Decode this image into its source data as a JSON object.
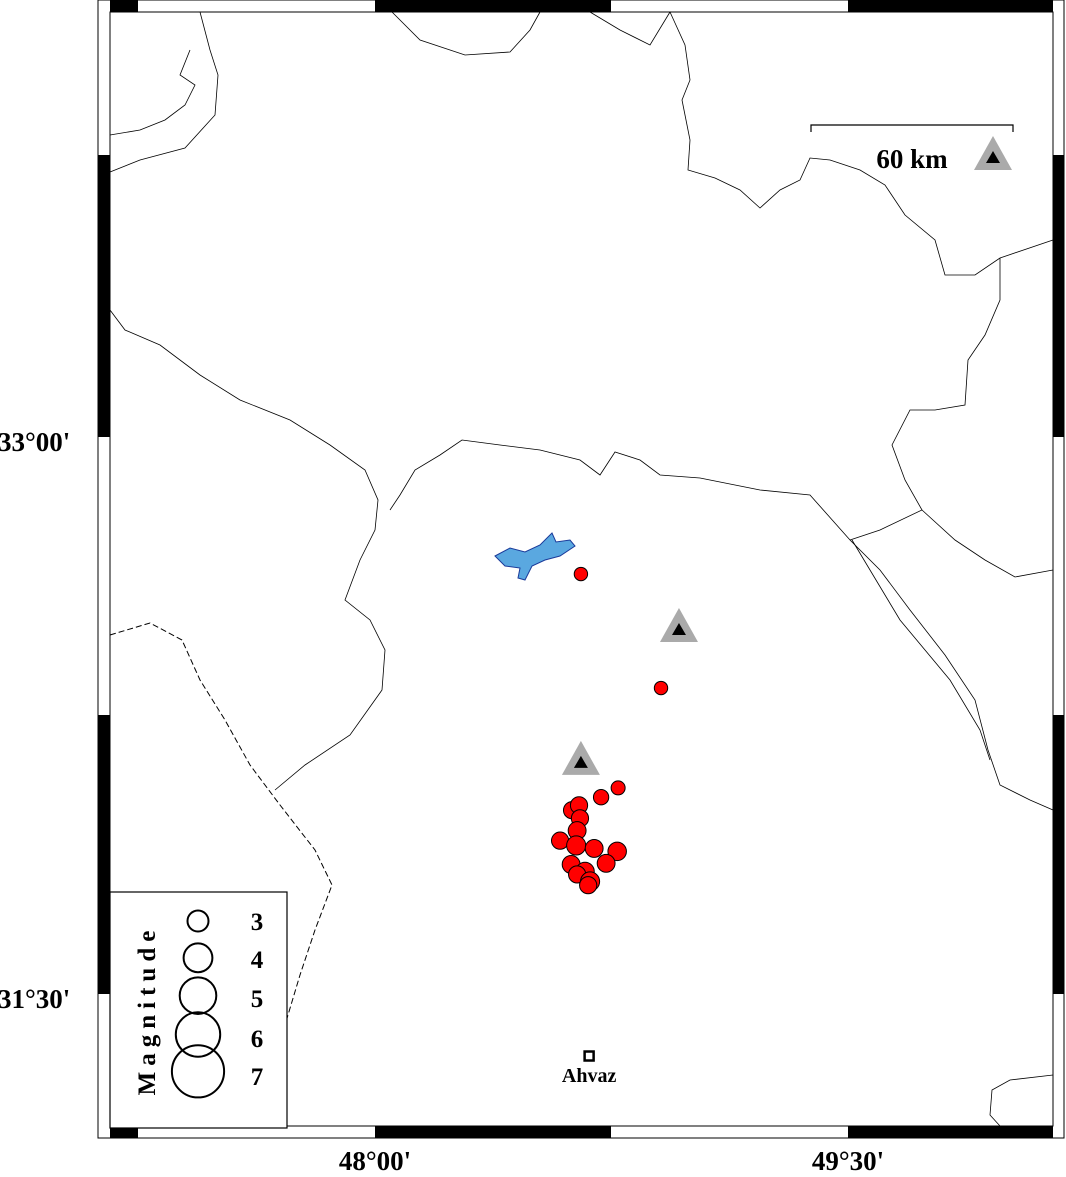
{
  "chart_data": {
    "type": "map",
    "lon_range": [
      47.2,
      50.2
    ],
    "lat_range": [
      30.96,
      33.46
    ],
    "x_ticks": [
      {
        "value": 48.0,
        "label": "48°00'"
      },
      {
        "value": 49.5,
        "label": "49°30'"
      }
    ],
    "y_ticks": [
      {
        "value": 33.0,
        "label": "33°00'"
      },
      {
        "value": 31.5,
        "label": "31°30'"
      }
    ],
    "scale_bar": {
      "label": "60 km"
    },
    "colors": {
      "event": "#ff0000",
      "lake": "#5aa8e0",
      "station": "#000000",
      "station_halo": "#aaaaaa",
      "border": "#000000"
    },
    "events": [
      {
        "lon": 48.653,
        "lat": 32.631,
        "mag": 2.4
      },
      {
        "lon": 48.907,
        "lat": 32.324,
        "mag": 2.4
      },
      {
        "lon": 48.771,
        "lat": 32.055,
        "mag": 2.5
      },
      {
        "lon": 48.717,
        "lat": 32.03,
        "mag": 2.7
      },
      {
        "lon": 48.625,
        "lat": 31.995,
        "mag": 3.0
      },
      {
        "lon": 48.647,
        "lat": 32.008,
        "mag": 3.0
      },
      {
        "lon": 48.65,
        "lat": 31.973,
        "mag": 3.0
      },
      {
        "lon": 48.641,
        "lat": 31.94,
        "mag": 3.1
      },
      {
        "lon": 48.587,
        "lat": 31.913,
        "mag": 3.0
      },
      {
        "lon": 48.638,
        "lat": 31.9,
        "mag": 3.3
      },
      {
        "lon": 48.695,
        "lat": 31.892,
        "mag": 3.1
      },
      {
        "lon": 48.768,
        "lat": 31.884,
        "mag": 3.2
      },
      {
        "lon": 48.622,
        "lat": 31.849,
        "mag": 3.1
      },
      {
        "lon": 48.733,
        "lat": 31.852,
        "mag": 3.1
      },
      {
        "lon": 48.666,
        "lat": 31.83,
        "mag": 3.2
      },
      {
        "lon": 48.641,
        "lat": 31.822,
        "mag": 3.0
      },
      {
        "lon": 48.682,
        "lat": 31.803,
        "mag": 3.3
      },
      {
        "lon": 48.676,
        "lat": 31.793,
        "mag": 3.0
      }
    ],
    "stations": [
      {
        "lon": 48.964,
        "lat": 32.483
      },
      {
        "lon": 48.653,
        "lat": 32.125
      },
      {
        "lon": 49.857,
        "lat": 33.751
      }
    ],
    "towns": [
      {
        "name": "Ahvaz",
        "lon": 48.679,
        "lat": 31.333
      }
    ],
    "legend": {
      "title": "Magnitude",
      "placement": "bottom-left",
      "entries": [
        {
          "mag": 3,
          "label": "3"
        },
        {
          "mag": 4,
          "label": "4"
        },
        {
          "mag": 5,
          "label": "5"
        },
        {
          "mag": 6,
          "label": "6"
        },
        {
          "mag": 7,
          "label": "7"
        }
      ]
    }
  }
}
